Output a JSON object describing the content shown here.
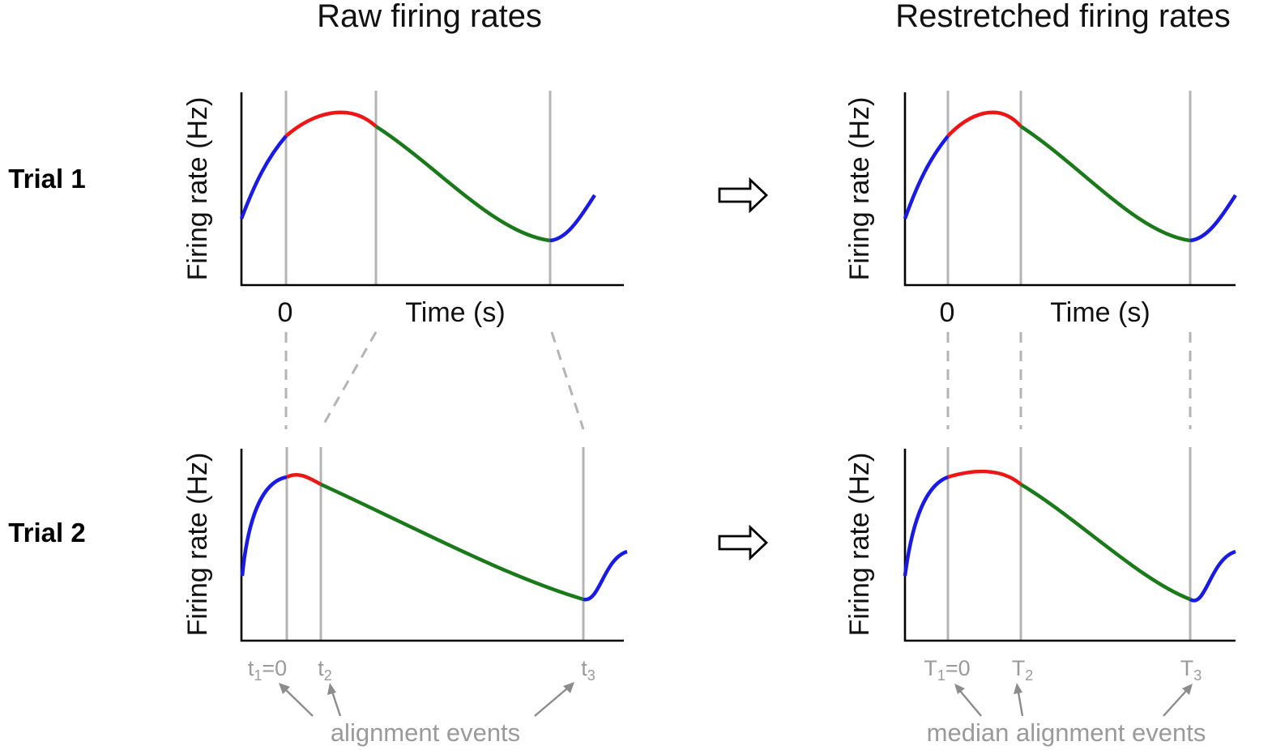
{
  "titles": {
    "left": "Raw firing rates",
    "right": "Restretched firing rates"
  },
  "trials": [
    "Trial 1",
    "Trial 2"
  ],
  "axis": {
    "ylabel": "Firing rate (Hz)",
    "xlabel": "Time (s)",
    "zero_tick": "0"
  },
  "events": {
    "raw": [
      {
        "base": "t",
        "sub": "1",
        "suffix": "=0"
      },
      {
        "base": "t",
        "sub": "2",
        "suffix": ""
      },
      {
        "base": "t",
        "sub": "3",
        "suffix": ""
      }
    ],
    "median": [
      {
        "base": "T",
        "sub": "1",
        "suffix": "=0"
      },
      {
        "base": "T",
        "sub": "2",
        "suffix": ""
      },
      {
        "base": "T",
        "sub": "3",
        "suffix": ""
      }
    ]
  },
  "annotations": {
    "raw": "alignment events",
    "median": "median alignment events"
  },
  "colors": {
    "pre": "#1a1ae6",
    "early": "#ee1515",
    "late": "#1a7a1a",
    "post": "#1a1ae6",
    "event_line": "#b4b4b4",
    "annotation": "#9a9a9a"
  },
  "icons": {
    "transform": "hollow-right-arrow-icon",
    "pointer": "gray-pointer-arrow-icon"
  }
}
